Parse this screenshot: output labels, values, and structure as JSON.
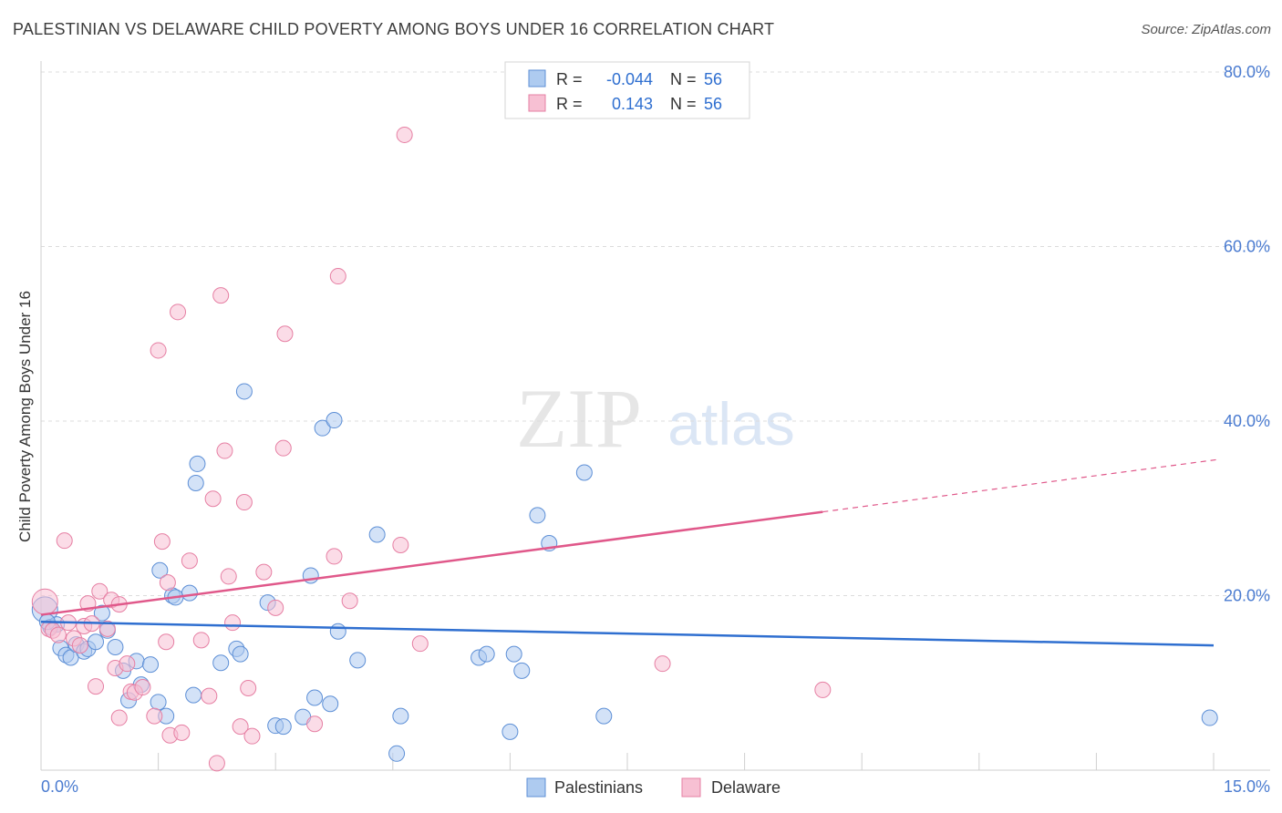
{
  "title": "PALESTINIAN VS DELAWARE CHILD POVERTY AMONG BOYS UNDER 16 CORRELATION CHART",
  "source": "Source: ZipAtlas.com",
  "watermark": {
    "zip": "ZIP",
    "atlas": "atlas"
  },
  "legend_box": {
    "rows": [
      {
        "r_label": "R =",
        "r_value": "-0.044",
        "n_label": "N =",
        "n_value": "56"
      },
      {
        "r_label": "R =",
        "r_value": "0.143",
        "n_label": "N =",
        "n_value": "56"
      }
    ]
  },
  "colors": {
    "palestinians_fill": "#aecbf0",
    "palestinians_stroke": "#5d8fd6",
    "palestinians_line": "#2f6fd0",
    "delaware_fill": "#f7c0d3",
    "delaware_stroke": "#e67fa3",
    "delaware_line": "#e0588a",
    "axis_text": "#4a7bd0",
    "grid": "#dcdcdc"
  },
  "chart_data": {
    "type": "scatter",
    "title": "PALESTINIAN VS DELAWARE CHILD POVERTY AMONG BOYS UNDER 16 CORRELATION CHART",
    "xlabel": "",
    "ylabel": "Child Poverty Among Boys Under 16",
    "xlim": [
      0,
      15
    ],
    "ylim": [
      0,
      80
    ],
    "x_tick_labels": [
      "0.0%",
      "15.0%"
    ],
    "y_tick_labels": [
      "20.0%",
      "40.0%",
      "60.0%",
      "80.0%"
    ],
    "y_ticks": [
      20,
      40,
      60,
      80
    ],
    "grid": true,
    "legend": [
      "Palestinians",
      "Delaware"
    ],
    "series": [
      {
        "name": "Palestinians",
        "r": -0.044,
        "n": 56,
        "trend": {
          "x": [
            0,
            15
          ],
          "y": [
            17.0,
            14.3
          ]
        },
        "points": [
          [
            0.05,
            18.4
          ],
          [
            0.12,
            16.4
          ],
          [
            0.2,
            16.7
          ],
          [
            0.25,
            14.0
          ],
          [
            0.32,
            13.2
          ],
          [
            0.38,
            12.9
          ],
          [
            0.45,
            14.4
          ],
          [
            0.55,
            13.6
          ],
          [
            0.6,
            13.9
          ],
          [
            0.7,
            14.7
          ],
          [
            0.78,
            18.0
          ],
          [
            0.85,
            16.0
          ],
          [
            0.95,
            14.1
          ],
          [
            1.05,
            11.4
          ],
          [
            1.12,
            8.0
          ],
          [
            1.22,
            12.5
          ],
          [
            1.28,
            9.8
          ],
          [
            1.4,
            12.1
          ],
          [
            1.5,
            7.8
          ],
          [
            1.6,
            6.2
          ],
          [
            1.68,
            20.0
          ],
          [
            1.72,
            19.8
          ],
          [
            1.9,
            20.3
          ],
          [
            1.95,
            8.6
          ],
          [
            1.52,
            22.9
          ],
          [
            1.98,
            32.9
          ],
          [
            2.0,
            35.1
          ],
          [
            2.3,
            12.3
          ],
          [
            2.5,
            13.9
          ],
          [
            2.55,
            13.3
          ],
          [
            2.6,
            43.4
          ],
          [
            2.9,
            19.2
          ],
          [
            3.0,
            5.1
          ],
          [
            3.1,
            5.0
          ],
          [
            3.35,
            6.1
          ],
          [
            3.45,
            22.3
          ],
          [
            3.5,
            8.3
          ],
          [
            3.6,
            39.2
          ],
          [
            3.7,
            7.6
          ],
          [
            3.75,
            40.1
          ],
          [
            3.8,
            15.9
          ],
          [
            4.05,
            12.6
          ],
          [
            4.3,
            27.0
          ],
          [
            4.55,
            1.9
          ],
          [
            4.6,
            6.2
          ],
          [
            5.6,
            12.9
          ],
          [
            5.7,
            13.3
          ],
          [
            6.0,
            4.4
          ],
          [
            6.05,
            13.3
          ],
          [
            6.15,
            11.4
          ],
          [
            6.35,
            29.2
          ],
          [
            6.5,
            26.0
          ],
          [
            6.95,
            34.1
          ],
          [
            7.2,
            6.2
          ],
          [
            14.95,
            6.0
          ],
          [
            0.08,
            17.0
          ]
        ]
      },
      {
        "name": "Delaware",
        "r": 0.143,
        "n": 56,
        "trend": {
          "x": [
            0,
            10.0
          ],
          "y": [
            17.8,
            29.6
          ]
        },
        "trend_dashed": {
          "x": [
            10.0,
            15
          ],
          "y": [
            29.6,
            35.6
          ]
        },
        "points": [
          [
            0.05,
            19.3
          ],
          [
            0.1,
            16.2
          ],
          [
            0.15,
            16.0
          ],
          [
            0.22,
            15.5
          ],
          [
            0.3,
            26.3
          ],
          [
            0.35,
            16.9
          ],
          [
            0.42,
            15.1
          ],
          [
            0.5,
            14.3
          ],
          [
            0.55,
            16.5
          ],
          [
            0.6,
            19.1
          ],
          [
            0.65,
            16.8
          ],
          [
            0.7,
            9.6
          ],
          [
            0.75,
            20.5
          ],
          [
            0.85,
            16.2
          ],
          [
            0.9,
            19.5
          ],
          [
            0.95,
            11.7
          ],
          [
            1.0,
            19.0
          ],
          [
            1.0,
            6.0
          ],
          [
            1.1,
            12.2
          ],
          [
            1.15,
            9.0
          ],
          [
            1.2,
            8.9
          ],
          [
            1.3,
            9.5
          ],
          [
            1.45,
            6.2
          ],
          [
            1.5,
            48.1
          ],
          [
            1.55,
            26.2
          ],
          [
            1.6,
            14.7
          ],
          [
            1.62,
            21.5
          ],
          [
            1.65,
            4.0
          ],
          [
            1.75,
            52.5
          ],
          [
            1.8,
            4.3
          ],
          [
            1.9,
            24.0
          ],
          [
            2.05,
            14.9
          ],
          [
            2.15,
            8.5
          ],
          [
            2.2,
            31.1
          ],
          [
            2.25,
            0.8
          ],
          [
            2.3,
            54.4
          ],
          [
            2.35,
            36.6
          ],
          [
            2.4,
            22.2
          ],
          [
            2.45,
            16.9
          ],
          [
            2.55,
            5.0
          ],
          [
            2.6,
            30.7
          ],
          [
            2.65,
            9.4
          ],
          [
            2.7,
            3.9
          ],
          [
            2.85,
            22.7
          ],
          [
            3.0,
            18.6
          ],
          [
            3.1,
            36.9
          ],
          [
            3.12,
            50.0
          ],
          [
            3.5,
            5.3
          ],
          [
            3.75,
            24.5
          ],
          [
            3.8,
            56.6
          ],
          [
            3.95,
            19.4
          ],
          [
            4.6,
            25.8
          ],
          [
            4.65,
            72.8
          ],
          [
            4.85,
            14.5
          ],
          [
            7.95,
            12.2
          ],
          [
            10.0,
            9.2
          ]
        ]
      }
    ]
  }
}
